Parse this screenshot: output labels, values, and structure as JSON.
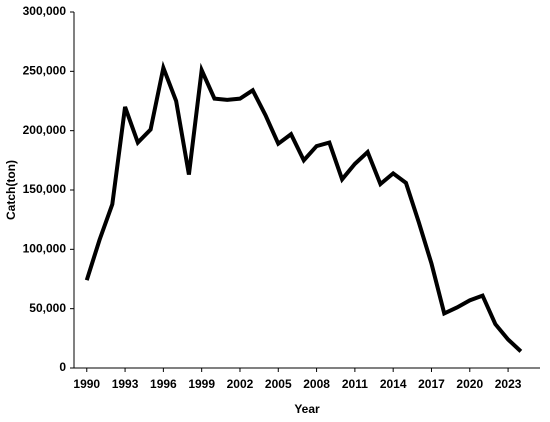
{
  "chart_data": {
    "type": "line",
    "x_label": "Year",
    "y_label": "Catch(ton)",
    "x": [
      1990,
      1991,
      1992,
      1993,
      1994,
      1995,
      1996,
      1997,
      1998,
      1999,
      2000,
      2001,
      2002,
      2003,
      2004,
      2005,
      2006,
      2007,
      2008,
      2009,
      2010,
      2011,
      2012,
      2013,
      2014,
      2015,
      2016,
      2017,
      2018,
      2019,
      2020,
      2021,
      2022,
      2023,
      2024
    ],
    "series": [
      {
        "color": "#000000",
        "values": [
          74000,
          108000,
          138000,
          220000,
          190000,
          201000,
          253000,
          225000,
          163000,
          251000,
          227000,
          226000,
          227000,
          234000,
          213000,
          189000,
          197000,
          175000,
          187000,
          190000,
          159000,
          172000,
          182000,
          155000,
          164000,
          156000,
          123000,
          88000,
          46000,
          51000,
          57000,
          61000,
          37000,
          24000,
          14000
        ]
      }
    ],
    "xlim": [
      1989,
      2025.5
    ],
    "xticks": [
      1990,
      1993,
      1996,
      1999,
      2002,
      2005,
      2008,
      2011,
      2014,
      2017,
      2020,
      2023
    ],
    "ylim": [
      0,
      300000
    ],
    "yticks": [
      0,
      {
        "value": 50000,
        "label": "50,000"
      },
      {
        "value": 100000,
        "label": "100,000"
      },
      {
        "value": 150000,
        "label": "150,000"
      },
      {
        "value": 200000,
        "label": "200,000"
      },
      {
        "value": 250000,
        "label": "250,000"
      },
      {
        "value": 300000,
        "label": "300,000"
      }
    ],
    "grid": false
  }
}
